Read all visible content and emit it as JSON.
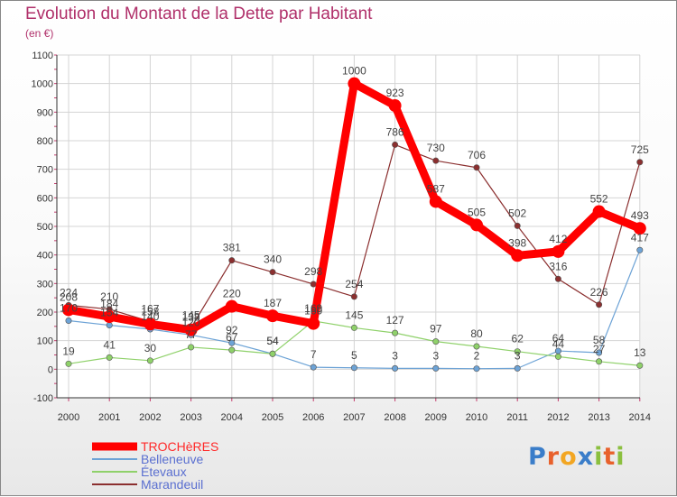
{
  "title": "Evolution du Montant de la Dette par Habitant",
  "subtitle": "(en €)",
  "logo": {
    "letters": [
      "P",
      "r",
      "o",
      "x",
      "i",
      "t",
      "i"
    ],
    "colors": [
      "#3a7dc9",
      "#e8612c",
      "#f2a623",
      "#3a7dc9",
      "#8bbf3f",
      "#e8612c",
      "#8bbf3f"
    ]
  },
  "chart_data": {
    "type": "line",
    "x": [
      "2000",
      "2001",
      "2002",
      "2003",
      "2004",
      "2005",
      "2006",
      "2007",
      "2008",
      "2009",
      "2010",
      "2011",
      "2012",
      "2013",
      "2014"
    ],
    "ylim": [
      -100,
      1100
    ],
    "yticks": [
      "-100",
      "0",
      "100",
      "200",
      "300",
      "400",
      "500",
      "600",
      "700",
      "800",
      "900",
      "1000",
      "1100"
    ],
    "grid": true,
    "legend_position": "bottom-left",
    "series": [
      {
        "name": "TROCHèRES",
        "color": "#ff0000",
        "values": [
          208,
          184,
          158,
          138,
          220,
          187,
          160,
          1000,
          923,
          587,
          505,
          398,
          412,
          552,
          493
        ],
        "labels": [
          "208",
          "184",
          "158",
          "138",
          "220",
          "187",
          "160",
          "1000",
          "923",
          "587",
          "505",
          "398",
          "412",
          "552",
          "493"
        ]
      },
      {
        "name": "Belleneuve",
        "color": "#6da3d6",
        "values": [
          170,
          154,
          140,
          120,
          92,
          54,
          7,
          5,
          3,
          3,
          2,
          3,
          64,
          58,
          417
        ],
        "labels": [
          "170",
          "154",
          "140",
          "120",
          "92",
          "54",
          "7",
          "5",
          "3",
          "3",
          "2",
          "3",
          "64",
          "58",
          "417"
        ]
      },
      {
        "name": "Étevaux",
        "color": "#8fd16a",
        "values": [
          19,
          41,
          30,
          77,
          67,
          54,
          169,
          145,
          127,
          97,
          80,
          62,
          44,
          27,
          13
        ],
        "labels": [
          "19",
          "41",
          "30",
          "77",
          "67",
          "54",
          "169",
          "145",
          "127",
          "97",
          "80",
          "62",
          "44",
          "27",
          "13"
        ]
      },
      {
        "name": "Marandeuil",
        "color": "#8b2f2f",
        "values": [
          224,
          210,
          167,
          145,
          381,
          340,
          298,
          254,
          786,
          730,
          706,
          502,
          316,
          226,
          725
        ],
        "labels": [
          "224",
          "210",
          "167",
          "145",
          "381",
          "340",
          "298",
          "254",
          "786",
          "730",
          "706",
          "502",
          "316",
          "226",
          "725"
        ]
      }
    ]
  }
}
